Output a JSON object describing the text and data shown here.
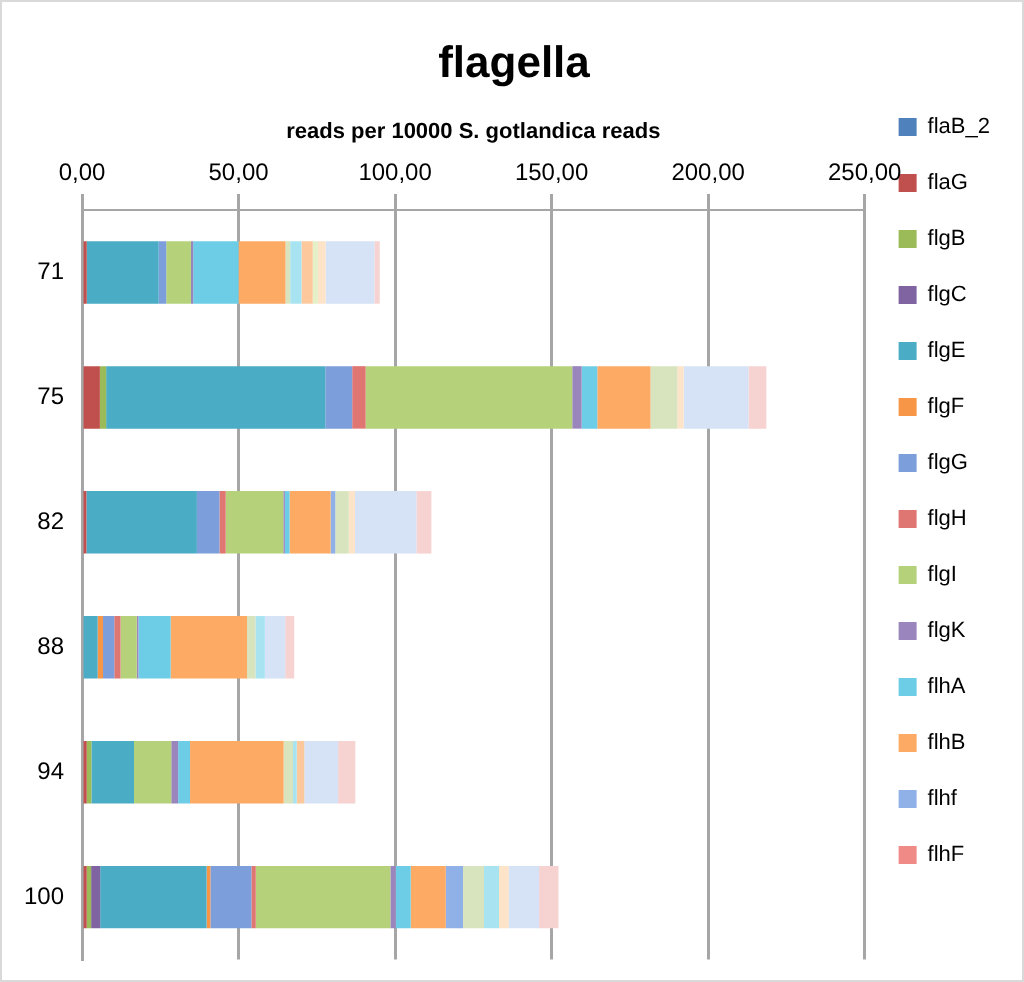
{
  "chart_data": {
    "type": "bar",
    "orientation": "horizontal",
    "stacked": true,
    "title": "flagella",
    "xlabel": "reads per 10000 S. gotlandica reads",
    "categories": [
      "71",
      "75",
      "82",
      "88",
      "94",
      "100"
    ],
    "xlim": [
      0,
      250
    ],
    "xticks": [
      {
        "value": 0,
        "label": "0,00"
      },
      {
        "value": 50,
        "label": "50,00"
      },
      {
        "value": 100,
        "label": "100,00"
      },
      {
        "value": 150,
        "label": "150,00"
      },
      {
        "value": 200,
        "label": "200,00"
      },
      {
        "value": 250,
        "label": "250,00"
      }
    ],
    "grid": "x",
    "legend": "right",
    "series": [
      {
        "name": "flaB_2",
        "color": "#4f81bd",
        "values": [
          0,
          0,
          0,
          0,
          0,
          0
        ]
      },
      {
        "name": "flaG",
        "color": "#c0504d",
        "values": [
          1.5,
          5.7,
          1.4,
          0,
          1.5,
          1.5
        ]
      },
      {
        "name": "flgB",
        "color": "#9bbb59",
        "values": [
          0,
          2,
          0,
          0,
          1.5,
          1.4
        ]
      },
      {
        "name": "flgC",
        "color": "#8064a2",
        "values": [
          0,
          0,
          0,
          0,
          0,
          2.9
        ]
      },
      {
        "name": "flgE",
        "color": "#4bacc6",
        "values": [
          23,
          70,
          35.3,
          5,
          13.6,
          34
        ]
      },
      {
        "name": "flgF",
        "color": "#f79646",
        "values": [
          0,
          0,
          0,
          1.7,
          0,
          1.2
        ]
      },
      {
        "name": "flgG",
        "color": "#7c9fdb",
        "values": [
          2.4,
          8.6,
          7.2,
          3.6,
          0,
          13.1
        ]
      },
      {
        "name": "flgH",
        "color": "#e07672",
        "values": [
          0,
          4.3,
          2,
          2,
          0,
          1.4
        ]
      },
      {
        "name": "flgI",
        "color": "#b5d27a",
        "values": [
          7.9,
          66,
          18.4,
          5.2,
          11.9,
          43
        ]
      },
      {
        "name": "flgK",
        "color": "#9a85bd",
        "values": [
          0.7,
          3,
          0.5,
          0.5,
          2.2,
          1.7
        ]
      },
      {
        "name": "flhA",
        "color": "#6dcde6",
        "values": [
          14.5,
          5,
          1.5,
          10.3,
          3.8,
          4.8
        ]
      },
      {
        "name": "flhB",
        "color": "#fcaa64",
        "values": [
          15,
          17,
          13.1,
          24.4,
          29.9,
          11.2
        ]
      },
      {
        "name": "flhf",
        "color": "#8fb1e8",
        "values": [
          0,
          0,
          1.5,
          0,
          0,
          5.5
        ]
      },
      {
        "name": "flhF",
        "color": "#f08a87",
        "values": [
          0,
          0,
          0,
          0,
          0,
          0
        ]
      },
      {
        "color": "#d7e4bd",
        "values": [
          1.5,
          8.6,
          4.3,
          2.7,
          3,
          6.7
        ]
      },
      {
        "color": "#a8e3f2",
        "values": [
          3.6,
          0,
          0,
          3,
          1.2,
          4.8
        ]
      },
      {
        "color": "#fcc89c",
        "values": [
          3.6,
          0,
          0,
          0,
          2.4,
          0
        ]
      },
      {
        "color": "#e6f0c8",
        "values": [
          1.7,
          0,
          0,
          0,
          0,
          0
        ]
      },
      {
        "color": "#fde3c8",
        "values": [
          2.4,
          2,
          2,
          0,
          0,
          3.1
        ]
      },
      {
        "color": "#d6e2f5",
        "values": [
          15.6,
          20.7,
          19.6,
          6.5,
          10.8,
          9.7
        ]
      },
      {
        "color": "#f6d2d1",
        "values": [
          1.7,
          5.7,
          4.8,
          2.9,
          5.5,
          6.2
        ]
      }
    ]
  }
}
